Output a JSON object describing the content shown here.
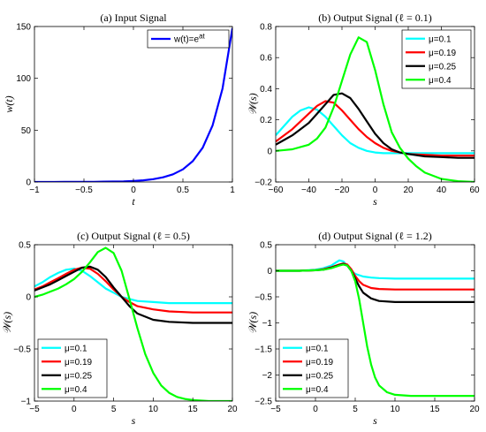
{
  "chart_data": [
    {
      "type": "line",
      "title": "(a) Input Signal",
      "xlabel": "t",
      "ylabel": "w(t)",
      "xlim": [
        -1,
        1
      ],
      "ylim": [
        0,
        150
      ],
      "xticks": [
        -1,
        -0.5,
        0,
        0.5,
        1
      ],
      "yticks": [
        0,
        50,
        100,
        150
      ],
      "xtick_labels": [
        "−1",
        "−0.5",
        "0",
        "0.5",
        "1"
      ],
      "ytick_labels": [
        "0",
        "50",
        "100",
        "150"
      ],
      "legend": {
        "position": "top-right",
        "entries": [
          {
            "label": "w(t)=e",
            "superscript": "at",
            "color": "#0000ff"
          }
        ]
      },
      "series": [
        {
          "color": "#0000ff",
          "x": [
            -1,
            -0.9,
            -0.8,
            -0.7,
            -0.6,
            -0.5,
            -0.4,
            -0.3,
            -0.2,
            -0.1,
            0,
            0.1,
            0.2,
            0.3,
            0.4,
            0.5,
            0.6,
            0.7,
            0.8,
            0.9,
            1
          ],
          "y": [
            0,
            0,
            0,
            0.1,
            0.1,
            0.1,
            0.2,
            0.3,
            0.4,
            0.6,
            1,
            1.6,
            2.7,
            4.5,
            7.4,
            12.2,
            20.1,
            33.1,
            54.6,
            90,
            148.4
          ]
        }
      ]
    },
    {
      "type": "line",
      "title": "(b) Output Signal (ℓ = 0.1)",
      "xlabel": "s",
      "ylabel": "𝒲(s)",
      "xlim": [
        -60,
        60
      ],
      "ylim": [
        -0.2,
        0.8
      ],
      "xticks": [
        -60,
        -40,
        -20,
        0,
        20,
        40,
        60
      ],
      "yticks": [
        -0.2,
        0,
        0.2,
        0.4,
        0.6,
        0.8
      ],
      "xtick_labels": [
        "−60",
        "−40",
        "−20",
        "0",
        "20",
        "40",
        "60"
      ],
      "ytick_labels": [
        "−0.2",
        "0",
        "0.2",
        "0.4",
        "0.6",
        "0.8"
      ],
      "legend": {
        "position": "top-right",
        "entries": [
          {
            "label": "μ=0.1",
            "color": "#00ffff"
          },
          {
            "label": "μ=0.19",
            "color": "#ff0000"
          },
          {
            "label": "μ=0.25",
            "color": "#000000"
          },
          {
            "label": "μ=0.4",
            "color": "#00ff00"
          }
        ]
      },
      "series": [
        {
          "color": "#00ffff",
          "x": [
            -60,
            -55,
            -50,
            -45,
            -40,
            -35,
            -30,
            -25,
            -20,
            -15,
            -10,
            -5,
            0,
            5,
            10,
            20,
            30,
            40,
            50,
            60
          ],
          "y": [
            0.1,
            0.16,
            0.22,
            0.26,
            0.28,
            0.265,
            0.22,
            0.16,
            0.1,
            0.05,
            0.02,
            0.0,
            -0.01,
            -0.015,
            -0.015,
            -0.015,
            -0.015,
            -0.015,
            -0.015,
            -0.015
          ]
        },
        {
          "color": "#ff0000",
          "x": [
            -60,
            -55,
            -50,
            -45,
            -40,
            -35,
            -30,
            -25,
            -20,
            -15,
            -10,
            -5,
            0,
            5,
            10,
            15,
            20,
            30,
            40,
            50,
            60
          ],
          "y": [
            0.06,
            0.1,
            0.14,
            0.19,
            0.24,
            0.29,
            0.32,
            0.31,
            0.26,
            0.2,
            0.14,
            0.09,
            0.05,
            0.02,
            0.0,
            -0.01,
            -0.02,
            -0.025,
            -0.03,
            -0.03,
            -0.03
          ]
        },
        {
          "color": "#000000",
          "x": [
            -60,
            -55,
            -50,
            -45,
            -40,
            -35,
            -30,
            -25,
            -20,
            -15,
            -10,
            -5,
            0,
            5,
            10,
            15,
            20,
            30,
            40,
            50,
            60
          ],
          "y": [
            0.04,
            0.07,
            0.1,
            0.14,
            0.18,
            0.24,
            0.3,
            0.36,
            0.37,
            0.34,
            0.27,
            0.19,
            0.11,
            0.05,
            0.01,
            -0.01,
            -0.02,
            -0.035,
            -0.04,
            -0.045,
            -0.045
          ]
        },
        {
          "color": "#00ff00",
          "x": [
            -60,
            -50,
            -40,
            -35,
            -30,
            -25,
            -20,
            -15,
            -10,
            -5,
            0,
            5,
            10,
            15,
            20,
            25,
            30,
            40,
            50,
            60
          ],
          "y": [
            0.0,
            0.01,
            0.04,
            0.08,
            0.15,
            0.28,
            0.45,
            0.62,
            0.73,
            0.7,
            0.52,
            0.3,
            0.12,
            0.02,
            -0.05,
            -0.1,
            -0.14,
            -0.18,
            -0.195,
            -0.2
          ]
        }
      ]
    },
    {
      "type": "line",
      "title": "(c) Output Signal (ℓ = 0.5)",
      "xlabel": "s",
      "ylabel": "𝒲(s)",
      "xlim": [
        -5,
        20
      ],
      "ylim": [
        -1,
        0.5
      ],
      "xticks": [
        -5,
        0,
        5,
        10,
        15,
        20
      ],
      "yticks": [
        -1,
        -0.5,
        0,
        0.5
      ],
      "xtick_labels": [
        "−5",
        "0",
        "5",
        "10",
        "15",
        "20"
      ],
      "ytick_labels": [
        "−1",
        "−0.5",
        "0",
        "0.5"
      ],
      "legend": {
        "position": "bottom-left",
        "entries": [
          {
            "label": "μ=0.1",
            "color": "#00ffff"
          },
          {
            "label": "μ=0.19",
            "color": "#ff0000"
          },
          {
            "label": "μ=0.25",
            "color": "#000000"
          },
          {
            "label": "μ=0.4",
            "color": "#00ff00"
          }
        ]
      },
      "series": [
        {
          "color": "#00ffff",
          "x": [
            -5,
            -4,
            -3,
            -2,
            -1,
            0,
            1,
            2,
            3,
            4,
            5,
            6,
            7,
            8,
            10,
            12,
            15,
            20
          ],
          "y": [
            0.1,
            0.14,
            0.19,
            0.23,
            0.26,
            0.27,
            0.25,
            0.2,
            0.14,
            0.08,
            0.04,
            0.0,
            -0.02,
            -0.04,
            -0.05,
            -0.06,
            -0.06,
            -0.06
          ]
        },
        {
          "color": "#ff0000",
          "x": [
            -5,
            -4,
            -3,
            -2,
            -1,
            0,
            1,
            2,
            3,
            4,
            5,
            6,
            7,
            8,
            10,
            12,
            15,
            20
          ],
          "y": [
            0.07,
            0.1,
            0.14,
            0.18,
            0.22,
            0.26,
            0.28,
            0.27,
            0.22,
            0.15,
            0.07,
            0.0,
            -0.05,
            -0.09,
            -0.12,
            -0.14,
            -0.15,
            -0.15
          ]
        },
        {
          "color": "#000000",
          "x": [
            -5,
            -4,
            -3,
            -2,
            -1,
            0,
            1,
            2,
            3,
            4,
            5,
            6,
            7,
            8,
            10,
            12,
            15,
            20
          ],
          "y": [
            0.06,
            0.09,
            0.12,
            0.16,
            0.2,
            0.24,
            0.28,
            0.29,
            0.26,
            0.19,
            0.09,
            0.0,
            -0.09,
            -0.16,
            -0.22,
            -0.24,
            -0.25,
            -0.25
          ]
        },
        {
          "color": "#00ff00",
          "x": [
            -5,
            -4,
            -3,
            -2,
            -1,
            0,
            1,
            2,
            3,
            4,
            5,
            6,
            7,
            8,
            9,
            10,
            11,
            12,
            13,
            14,
            15,
            17,
            20
          ],
          "y": [
            0.0,
            0.02,
            0.05,
            0.08,
            0.12,
            0.17,
            0.24,
            0.33,
            0.43,
            0.47,
            0.42,
            0.25,
            -0.02,
            -0.3,
            -0.55,
            -0.73,
            -0.85,
            -0.92,
            -0.96,
            -0.98,
            -0.99,
            -1.0,
            -1.0
          ]
        }
      ]
    },
    {
      "type": "line",
      "title": "(d) Output Signal (ℓ = 1.2)",
      "xlabel": "s",
      "ylabel": "𝒲(s)",
      "xlim": [
        -5,
        20
      ],
      "ylim": [
        -2.5,
        0.5
      ],
      "xticks": [
        -5,
        0,
        5,
        10,
        15,
        20
      ],
      "yticks": [
        -2.5,
        -2,
        -1.5,
        -1,
        -0.5,
        0,
        0.5
      ],
      "xtick_labels": [
        "−5",
        "0",
        "5",
        "10",
        "15",
        "20"
      ],
      "ytick_labels": [
        "−2.5",
        "−2",
        "−1.5",
        "−1",
        "−0.5",
        "0",
        "0.5"
      ],
      "legend": {
        "position": "bottom-left",
        "entries": [
          {
            "label": "μ=0.1",
            "color": "#00ffff"
          },
          {
            "label": "μ=0.19",
            "color": "#ff0000"
          },
          {
            "label": "μ=0.25",
            "color": "#000000"
          },
          {
            "label": "μ=0.4",
            "color": "#00ff00"
          }
        ]
      },
      "series": [
        {
          "color": "#00ffff",
          "x": [
            -5,
            -2,
            0,
            1,
            2,
            2.5,
            3,
            3.5,
            4,
            4.5,
            5,
            6,
            7,
            8,
            10,
            15,
            20
          ],
          "y": [
            0.0,
            0.0,
            0.02,
            0.05,
            0.1,
            0.15,
            0.2,
            0.18,
            0.1,
            0.0,
            -0.06,
            -0.11,
            -0.13,
            -0.14,
            -0.15,
            -0.15,
            -0.15
          ]
        },
        {
          "color": "#ff0000",
          "x": [
            -5,
            -2,
            0,
            1,
            2,
            3,
            3.5,
            4,
            4.5,
            5,
            5.5,
            6,
            7,
            8,
            10,
            15,
            20
          ],
          "y": [
            0.0,
            0.0,
            0.01,
            0.03,
            0.07,
            0.12,
            0.14,
            0.12,
            0.03,
            -0.1,
            -0.2,
            -0.27,
            -0.33,
            -0.35,
            -0.36,
            -0.36,
            -0.36
          ]
        },
        {
          "color": "#000000",
          "x": [
            -5,
            -2,
            0,
            1,
            2,
            3,
            3.5,
            4,
            4.5,
            5,
            5.5,
            6,
            7,
            8,
            10,
            15,
            20
          ],
          "y": [
            0.0,
            0.0,
            0.01,
            0.02,
            0.06,
            0.11,
            0.13,
            0.1,
            0.0,
            -0.15,
            -0.3,
            -0.42,
            -0.53,
            -0.58,
            -0.6,
            -0.6,
            -0.6
          ]
        },
        {
          "color": "#00ff00",
          "x": [
            -5,
            -2,
            0,
            1,
            2,
            3,
            3.5,
            4,
            4.5,
            5,
            5.5,
            6,
            6.5,
            7,
            7.5,
            8,
            9,
            10,
            12,
            15,
            20
          ],
          "y": [
            0.0,
            0.0,
            0.01,
            0.02,
            0.05,
            0.1,
            0.12,
            0.1,
            0.0,
            -0.2,
            -0.55,
            -1.0,
            -1.45,
            -1.8,
            -2.05,
            -2.2,
            -2.33,
            -2.38,
            -2.4,
            -2.4,
            -2.4
          ]
        }
      ]
    }
  ]
}
